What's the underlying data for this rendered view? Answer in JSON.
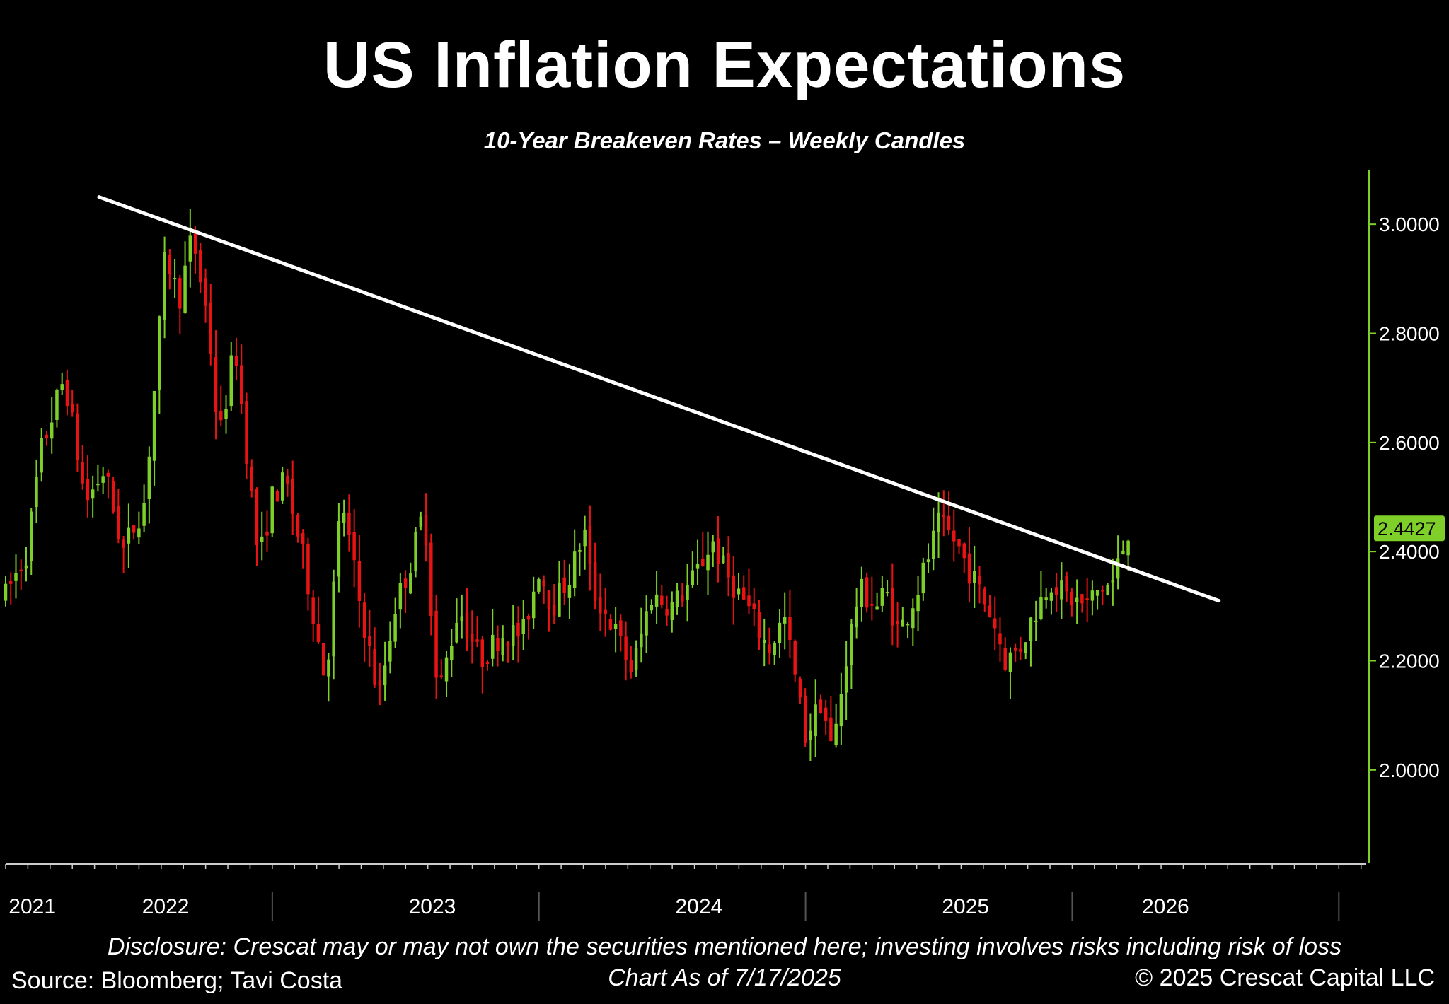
{
  "header": {
    "title": "US Inflation Expectations",
    "subtitle": "10-Year Breakeven Rates – Weekly Candles"
  },
  "footer": {
    "disclosure": "Disclosure: Crescat may or may not own the securities mentioned here; investing involves risks including risk of loss",
    "source": "Source: Bloomberg; Tavi Costa",
    "as_of": "Chart As of 7/17/2025",
    "copyright": "© 2025 Crescat Capital LLC"
  },
  "colors": {
    "background": "#000000",
    "up_candle": "#7fcf2a",
    "down_candle": "#e81414",
    "trendline": "#ffffff",
    "axis": "#7fcf2a",
    "last_value_badge": "#7fcf2a"
  },
  "chart_data": {
    "type": "candlestick",
    "title": "US Inflation Expectations",
    "subtitle": "10-Year Breakeven Rates – Weekly Candles",
    "ylim": [
      1.83,
      3.1
    ],
    "xlim": [
      2021.0,
      2026.1
    ],
    "y_ticks": [
      "3.0000",
      "2.8000",
      "2.6000",
      "2.4000",
      "2.2000",
      "2.0000"
    ],
    "y_tick_values": [
      3.0,
      2.8,
      2.6,
      2.4,
      2.2,
      2.0
    ],
    "x_tick_labels": [
      "2021",
      "2022",
      "2023",
      "2024",
      "2025",
      "2026"
    ],
    "last_value": "2.4427",
    "grid": false,
    "trendline": {
      "x": [
        2021.35,
        2025.55
      ],
      "y": [
        3.05,
        2.31
      ]
    },
    "anchors": [
      [
        2021.0,
        2.32
      ],
      [
        2021.08,
        2.4
      ],
      [
        2021.13,
        2.58
      ],
      [
        2021.22,
        2.72
      ],
      [
        2021.3,
        2.49
      ],
      [
        2021.37,
        2.55
      ],
      [
        2021.44,
        2.4
      ],
      [
        2021.52,
        2.49
      ],
      [
        2021.55,
        2.65
      ],
      [
        2021.6,
        2.95
      ],
      [
        2021.65,
        2.86
      ],
      [
        2021.7,
        2.98
      ],
      [
        2021.76,
        2.82
      ],
      [
        2021.8,
        2.6
      ],
      [
        2021.86,
        2.78
      ],
      [
        2021.9,
        2.6
      ],
      [
        2021.95,
        2.38
      ],
      [
        2022.0,
        2.5
      ],
      [
        2022.05,
        2.53
      ],
      [
        2022.12,
        2.38
      ],
      [
        2022.2,
        2.16
      ],
      [
        2022.26,
        2.5
      ],
      [
        2022.33,
        2.3
      ],
      [
        2022.4,
        2.13
      ],
      [
        2022.46,
        2.3
      ],
      [
        2022.52,
        2.38
      ],
      [
        2022.57,
        2.48
      ],
      [
        2022.62,
        2.13
      ],
      [
        2022.7,
        2.3
      ],
      [
        2022.78,
        2.2
      ],
      [
        2022.86,
        2.25
      ],
      [
        2022.94,
        2.25
      ],
      [
        2023.0,
        2.37
      ],
      [
        2023.05,
        2.3
      ],
      [
        2023.12,
        2.36
      ],
      [
        2023.17,
        2.44
      ],
      [
        2023.2,
        2.33
      ],
      [
        2023.28,
        2.26
      ],
      [
        2023.35,
        2.18
      ],
      [
        2023.42,
        2.32
      ],
      [
        2023.5,
        2.3
      ],
      [
        2023.58,
        2.35
      ],
      [
        2023.65,
        2.42
      ],
      [
        2023.7,
        2.36
      ],
      [
        2023.78,
        2.3
      ],
      [
        2023.86,
        2.22
      ],
      [
        2023.92,
        2.28
      ],
      [
        2024.0,
        2.06
      ],
      [
        2024.06,
        2.13
      ],
      [
        2024.1,
        2.03
      ],
      [
        2024.15,
        2.2
      ],
      [
        2024.2,
        2.33
      ],
      [
        2024.27,
        2.3
      ],
      [
        2024.3,
        2.33
      ],
      [
        2024.35,
        2.25
      ],
      [
        2024.42,
        2.33
      ],
      [
        2024.5,
        2.45
      ],
      [
        2024.56,
        2.42
      ],
      [
        2024.6,
        2.38
      ],
      [
        2024.65,
        2.33
      ],
      [
        2024.7,
        2.28
      ],
      [
        2024.75,
        2.2
      ],
      [
        2024.8,
        2.22
      ],
      [
        2024.87,
        2.3
      ],
      [
        2024.92,
        2.35
      ],
      [
        2024.97,
        2.32
      ],
      [
        2025.05,
        2.3
      ],
      [
        2025.1,
        2.33
      ],
      [
        2025.15,
        2.34
      ],
      [
        2025.18,
        2.39
      ],
      [
        2025.21,
        2.44
      ]
    ],
    "weeks": 220
  }
}
